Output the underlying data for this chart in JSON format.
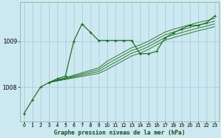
{
  "background_color": "#cce8f0",
  "plot_bg_color": "#cce8f0",
  "grid_color": "#aaccdd",
  "line_color": "#1a6b1a",
  "title": "Graphe pression niveau de la mer (hPa)",
  "xlim": [
    -0.5,
    23.5
  ],
  "ylim": [
    1007.25,
    1009.85
  ],
  "yticks": [
    1008,
    1009
  ],
  "xticks": [
    0,
    1,
    2,
    3,
    4,
    5,
    6,
    7,
    8,
    9,
    10,
    11,
    12,
    13,
    14,
    15,
    16,
    17,
    18,
    19,
    20,
    21,
    22,
    23
  ],
  "series": [
    {
      "x": [
        0,
        1,
        2,
        3,
        4,
        5,
        6,
        7,
        8,
        9,
        10,
        11,
        12,
        13,
        14,
        15,
        16,
        17,
        18,
        19,
        20,
        21,
        22,
        23
      ],
      "y": [
        1007.42,
        1007.72,
        1008.0,
        1008.1,
        1008.18,
        1008.24,
        1009.0,
        1009.38,
        1009.2,
        1009.02,
        1009.02,
        1009.02,
        1009.02,
        1009.02,
        1008.73,
        1008.73,
        1008.78,
        1009.07,
        1009.18,
        1009.27,
        1009.35,
        1009.35,
        1009.4,
        1009.55
      ],
      "has_markers": true
    },
    {
      "x": [
        3,
        9,
        10,
        11,
        12,
        13,
        14,
        15,
        16,
        17,
        18,
        19,
        20,
        21,
        22,
        23
      ],
      "y": [
        1008.1,
        1008.42,
        1008.56,
        1008.66,
        1008.76,
        1008.86,
        1008.92,
        1009.0,
        1009.1,
        1009.2,
        1009.26,
        1009.31,
        1009.36,
        1009.41,
        1009.45,
        1009.5
      ],
      "has_markers": false
    },
    {
      "x": [
        3,
        9,
        10,
        11,
        12,
        13,
        14,
        15,
        16,
        17,
        18,
        19,
        20,
        21,
        22,
        23
      ],
      "y": [
        1008.1,
        1008.38,
        1008.5,
        1008.6,
        1008.7,
        1008.8,
        1008.86,
        1008.94,
        1009.04,
        1009.14,
        1009.2,
        1009.25,
        1009.3,
        1009.35,
        1009.39,
        1009.44
      ],
      "has_markers": false
    },
    {
      "x": [
        3,
        9,
        10,
        11,
        12,
        13,
        14,
        15,
        16,
        17,
        18,
        19,
        20,
        21,
        22,
        23
      ],
      "y": [
        1008.1,
        1008.34,
        1008.44,
        1008.54,
        1008.64,
        1008.74,
        1008.8,
        1008.88,
        1008.98,
        1009.08,
        1009.14,
        1009.19,
        1009.24,
        1009.29,
        1009.33,
        1009.38
      ],
      "has_markers": false
    },
    {
      "x": [
        3,
        9,
        10,
        11,
        12,
        13,
        14,
        15,
        16,
        17,
        18,
        19,
        20,
        21,
        22,
        23
      ],
      "y": [
        1008.1,
        1008.3,
        1008.38,
        1008.48,
        1008.58,
        1008.68,
        1008.74,
        1008.82,
        1008.92,
        1009.02,
        1009.08,
        1009.13,
        1009.18,
        1009.23,
        1009.27,
        1009.32
      ],
      "has_markers": false
    }
  ]
}
